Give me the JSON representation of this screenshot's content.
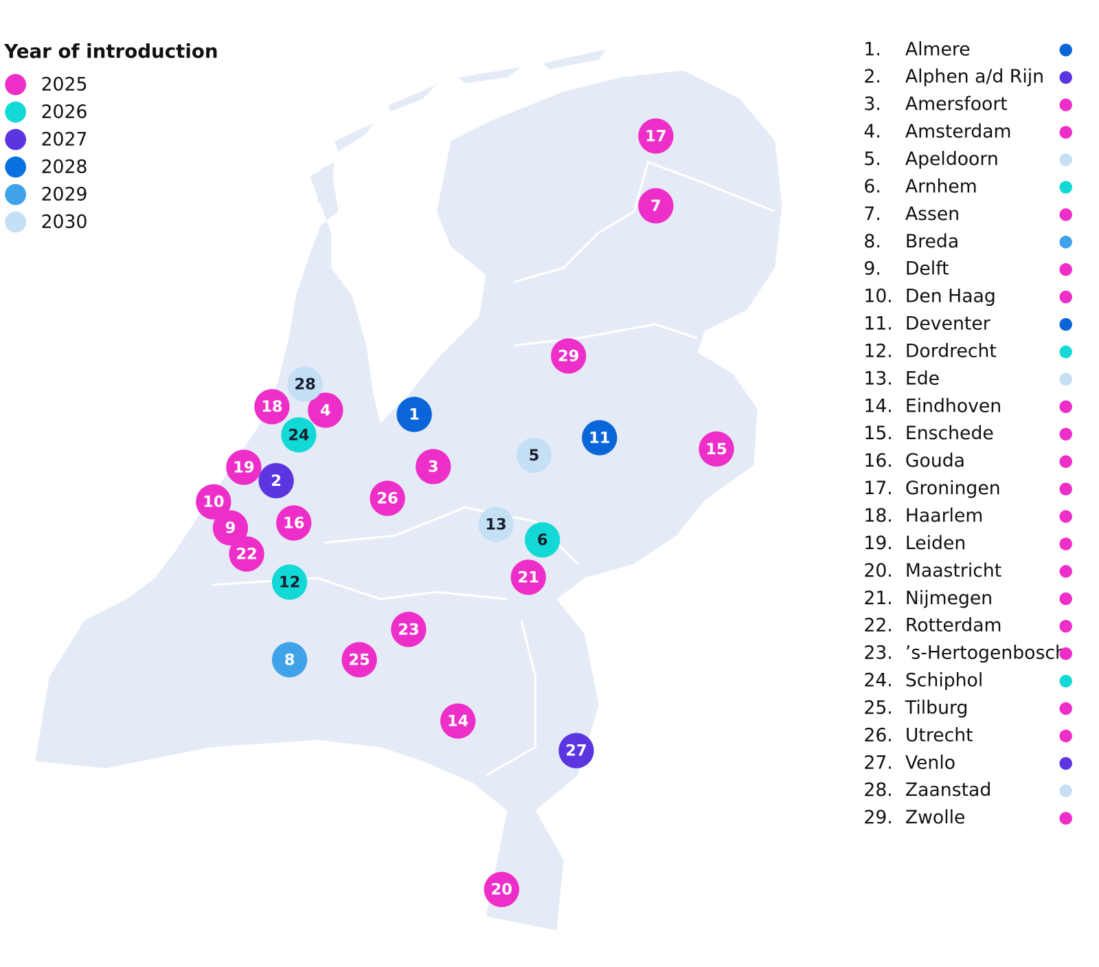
{
  "legend": {
    "title": "Year of introduction",
    "items": [
      {
        "label": "2025",
        "color": "#ee2ec8"
      },
      {
        "label": "2026",
        "color": "#12d9d6"
      },
      {
        "label": "2027",
        "color": "#5b35e0"
      },
      {
        "label": "2028",
        "color": "#0a72e0"
      },
      {
        "label": "2029",
        "color": "#40a2e8"
      },
      {
        "label": "2030",
        "color": "#c5dff5"
      }
    ]
  },
  "cities": [
    {
      "index": "1.",
      "name": "Almere",
      "marker": "1",
      "color": "#0a66d8"
    },
    {
      "index": "2.",
      "name": "Alphen a/d Rijn",
      "marker": "2",
      "color": "#5b35e0"
    },
    {
      "index": "3.",
      "name": "Amersfoort",
      "marker": "3",
      "color": "#ee2ec8"
    },
    {
      "index": "4.",
      "name": "Amsterdam",
      "marker": "4",
      "color": "#ee2ec8"
    },
    {
      "index": "5.",
      "name": "Apeldoorn",
      "marker": "5",
      "color": "#c5dff5"
    },
    {
      "index": "6.",
      "name": "Arnhem",
      "marker": "6",
      "color": "#12d9d6"
    },
    {
      "index": "7.",
      "name": "Assen",
      "marker": "7",
      "color": "#ee2ec8"
    },
    {
      "index": "8.",
      "name": "Breda",
      "marker": "8",
      "color": "#40a2e8"
    },
    {
      "index": "9.",
      "name": "Delft",
      "marker": "9",
      "color": "#ee2ec8"
    },
    {
      "index": "10.",
      "name": "Den Haag",
      "marker": "10",
      "color": "#ee2ec8"
    },
    {
      "index": "11.",
      "name": "Deventer",
      "marker": "11",
      "color": "#0a66d8"
    },
    {
      "index": "12.",
      "name": "Dordrecht",
      "marker": "12",
      "color": "#12d9d6"
    },
    {
      "index": "13.",
      "name": "Ede",
      "marker": "13",
      "color": "#c5dff5"
    },
    {
      "index": "14.",
      "name": "Eindhoven",
      "marker": "14",
      "color": "#ee2ec8"
    },
    {
      "index": "15.",
      "name": "Enschede",
      "marker": "15",
      "color": "#ee2ec8"
    },
    {
      "index": "16.",
      "name": "Gouda",
      "marker": "16",
      "color": "#ee2ec8"
    },
    {
      "index": "17.",
      "name": "Groningen",
      "marker": "17",
      "color": "#ee2ec8"
    },
    {
      "index": "18.",
      "name": "Haarlem",
      "marker": "18",
      "color": "#ee2ec8"
    },
    {
      "index": "19.",
      "name": "Leiden",
      "marker": "19",
      "color": "#ee2ec8"
    },
    {
      "index": "20.",
      "name": "Maastricht",
      "marker": "20",
      "color": "#ee2ec8"
    },
    {
      "index": "21.",
      "name": "Nijmegen",
      "marker": "21",
      "color": "#ee2ec8"
    },
    {
      "index": "22.",
      "name": "Rotterdam",
      "marker": "22",
      "color": "#ee2ec8"
    },
    {
      "index": "23.",
      "name": "’s-Hertogenbosch",
      "marker": "23",
      "color": "#ee2ec8"
    },
    {
      "index": "24.",
      "name": "Schiphol",
      "marker": "24",
      "color": "#12d9d6"
    },
    {
      "index": "25.",
      "name": "Tilburg",
      "marker": "25",
      "color": "#ee2ec8"
    },
    {
      "index": "26.",
      "name": "Utrecht",
      "marker": "26",
      "color": "#ee2ec8"
    },
    {
      "index": "27.",
      "name": "Venlo",
      "marker": "27",
      "color": "#5b35e0"
    },
    {
      "index": "28.",
      "name": "Zaanstad",
      "marker": "28",
      "color": "#c5dff5"
    },
    {
      "index": "29.",
      "name": "Zwolle",
      "marker": "29",
      "color": "#ee2ec8"
    }
  ]
}
